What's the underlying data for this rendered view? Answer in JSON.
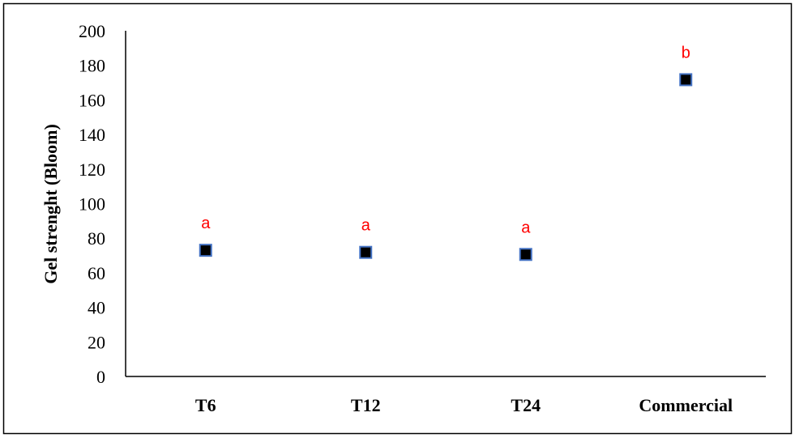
{
  "chart_data": {
    "type": "scatter",
    "title": "",
    "xlabel": "",
    "ylabel": "Gel strenght (Bloom)",
    "categories": [
      "T6",
      "T12",
      "T24",
      "Commercial"
    ],
    "values": [
      73,
      71.8,
      70.6,
      171.7
    ],
    "labels": [
      "a",
      "a",
      "a",
      "b"
    ],
    "ylim": [
      0,
      200
    ],
    "yticks": [
      0,
      20,
      40,
      60,
      80,
      100,
      120,
      140,
      160,
      180,
      200
    ],
    "grid": false,
    "legend": "none",
    "marker": "square",
    "colors": {
      "marker_fill": "#000000",
      "marker_edge": "#4472C4",
      "label": "#FF0000",
      "axis": "#000000"
    }
  }
}
